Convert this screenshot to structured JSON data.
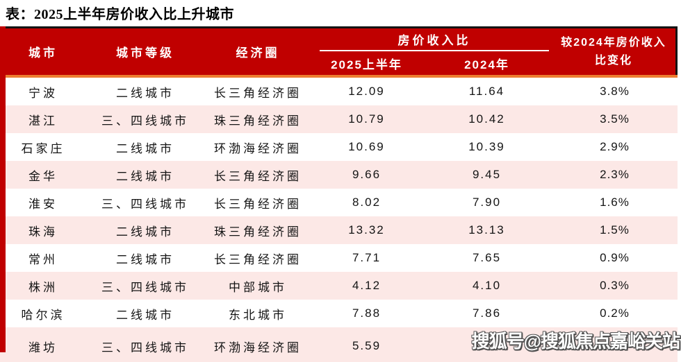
{
  "title": "表：2025上半年房价收入比上升城市",
  "colors": {
    "header_bg": "#C00000",
    "accent_bar": "#C00000",
    "orange_rule": "#ED7D31",
    "row_alt_pink": "#FCE8E6",
    "header_text": "#ffffff",
    "body_text": "#141414",
    "header_top_border": "#141414"
  },
  "table": {
    "headers": {
      "city": "城市",
      "tier": "城市等级",
      "region": "经济圈",
      "group": "房价收入比",
      "sub_2025": "2025上半年",
      "sub_2024": "2024年",
      "change": "较2024年房价收入比变化"
    },
    "rows": [
      {
        "city": "宁波",
        "tier": "二线城市",
        "region": "长三角经济圈",
        "v2025": "12.09",
        "v2024": "11.64",
        "change": "3.8%"
      },
      {
        "city": "湛江",
        "tier": "三、四线城市",
        "region": "珠三角经济圈",
        "v2025": "10.79",
        "v2024": "10.42",
        "change": "3.5%"
      },
      {
        "city": "石家庄",
        "tier": "二线城市",
        "region": "环渤海经济圈",
        "v2025": "10.69",
        "v2024": "10.39",
        "change": "2.9%"
      },
      {
        "city": "金华",
        "tier": "二线城市",
        "region": "长三角经济圈",
        "v2025": "9.66",
        "v2024": "9.45",
        "change": "2.3%"
      },
      {
        "city": "淮安",
        "tier": "三、四线城市",
        "region": "长三角经济圈",
        "v2025": "8.02",
        "v2024": "7.90",
        "change": "1.6%"
      },
      {
        "city": "珠海",
        "tier": "二线城市",
        "region": "珠三角经济圈",
        "v2025": "13.32",
        "v2024": "13.13",
        "change": "1.5%"
      },
      {
        "city": "常州",
        "tier": "二线城市",
        "region": "长三角经济圈",
        "v2025": "7.71",
        "v2024": "7.65",
        "change": "0.9%"
      },
      {
        "city": "株洲",
        "tier": "三、四线城市",
        "region": "中部城市",
        "v2025": "4.12",
        "v2024": "4.10",
        "change": "0.3%"
      },
      {
        "city": "哈尔滨",
        "tier": "二线城市",
        "region": "东北城市",
        "v2025": "7.88",
        "v2024": "7.86",
        "change": "0.2%"
      },
      {
        "city": "潍坊",
        "tier": "三、四线城市",
        "region": "环渤海经济圈",
        "v2025": "5.59",
        "v2024": "5.58",
        "change": "0.2%"
      }
    ]
  },
  "watermark": "搜狐号@搜狐焦点嘉峪关站",
  "chart_data": {
    "type": "table",
    "title": "表：2025上半年房价收入比上升城市",
    "columns": [
      "城市",
      "城市等级",
      "经济圈",
      "房价收入比 2025上半年",
      "房价收入比 2024年",
      "较2024年房价收入比变化"
    ],
    "rows": [
      [
        "宁波",
        "二线城市",
        "长三角经济圈",
        12.09,
        11.64,
        "3.8%"
      ],
      [
        "湛江",
        "三、四线城市",
        "珠三角经济圈",
        10.79,
        10.42,
        "3.5%"
      ],
      [
        "石家庄",
        "二线城市",
        "环渤海经济圈",
        10.69,
        10.39,
        "2.9%"
      ],
      [
        "金华",
        "二线城市",
        "长三角经济圈",
        9.66,
        9.45,
        "2.3%"
      ],
      [
        "淮安",
        "三、四线城市",
        "长三角经济圈",
        8.02,
        7.9,
        "1.6%"
      ],
      [
        "珠海",
        "二线城市",
        "珠三角经济圈",
        13.32,
        13.13,
        "1.5%"
      ],
      [
        "常州",
        "二线城市",
        "长三角经济圈",
        7.71,
        7.65,
        "0.9%"
      ],
      [
        "株洲",
        "三、四线城市",
        "中部城市",
        4.12,
        4.1,
        "0.3%"
      ],
      [
        "哈尔滨",
        "二线城市",
        "东北城市",
        7.88,
        7.86,
        "0.2%"
      ],
      [
        "潍坊",
        "三、四线城市",
        "环渤海经济圈",
        5.59,
        5.58,
        "0.2%"
      ]
    ]
  }
}
